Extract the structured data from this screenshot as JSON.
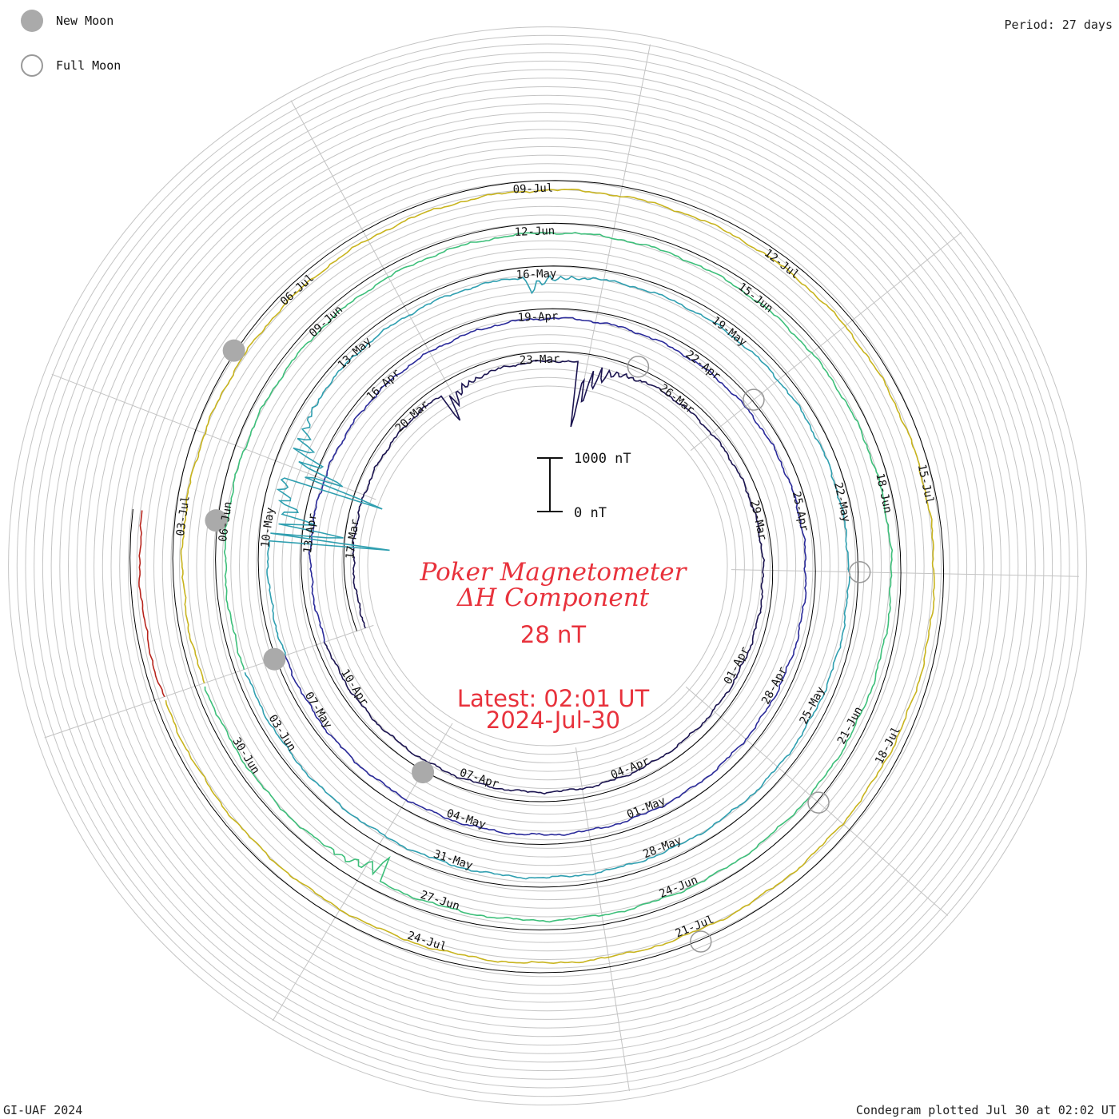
{
  "legend": {
    "new_moon_label": "New Moon",
    "full_moon_label": "Full Moon"
  },
  "period_label": "Period: 27 days",
  "footer": {
    "left": "GI-UAF 2024",
    "right": "Condegram plotted Jul 30 at 02:02 UT"
  },
  "center": {
    "title_line1": "Poker Magnetometer",
    "title_line2": "ΔH Component",
    "value": "28 nT",
    "latest_line1": "Latest: 02:01 UT",
    "latest_line2": "2024-Jul-30",
    "scale_top": "1000 nT",
    "scale_bottom": "0 nT"
  },
  "colors": {
    "accent": "#e8323c",
    "moon_fill": "#aaaaaa",
    "grid": "#bbbbbb",
    "reference_ring": "#000000"
  },
  "chart_data": {
    "type": "line",
    "layout": "spiral condegram",
    "title": "Poker Magnetometer ΔH Component",
    "period_days": 27,
    "current_value_nT": 28,
    "scale_nT": [
      0,
      1000
    ],
    "grid": true,
    "date_range": [
      "2024-03-15",
      "2024-07-30"
    ],
    "date_ticks": [
      "17-Mar",
      "20-Mar",
      "23-Mar",
      "26-Mar",
      "29-Mar",
      "01-Apr",
      "04-Apr",
      "07-Apr",
      "10-Apr",
      "13-Apr",
      "16-Apr",
      "19-Apr",
      "22-Apr",
      "25-Apr",
      "28-Apr",
      "01-May",
      "04-May",
      "07-May",
      "10-May",
      "13-May",
      "16-May",
      "19-May",
      "22-May",
      "25-May",
      "28-May",
      "31-May",
      "03-Jun",
      "06-Jun",
      "09-Jun",
      "12-Jun",
      "15-Jun",
      "18-Jun",
      "21-Jun",
      "24-Jun",
      "27-Jun",
      "30-Jun",
      "03-Jul",
      "06-Jul",
      "09-Jul",
      "12-Jul",
      "15-Jul",
      "18-Jul",
      "21-Jul",
      "24-Jul"
    ],
    "series": [
      {
        "start": "2024-03-15",
        "color": "#1b1450"
      },
      {
        "start": "2024-04-11",
        "color": "#2a2a9a"
      },
      {
        "start": "2024-05-08",
        "color": "#2f9fb0"
      },
      {
        "start": "2024-06-04",
        "color": "#3dbf7a"
      },
      {
        "start": "2024-07-01",
        "color": "#c8b41e"
      },
      {
        "start": "2024-07-28",
        "color": "#b8241c"
      }
    ],
    "disturbances": [
      {
        "date": "2024-03-21",
        "peak_nT": 350
      },
      {
        "date": "2024-03-24",
        "peak_nT": 900
      },
      {
        "date": "2024-05-10",
        "peak_nT": 1400
      },
      {
        "date": "2024-05-11",
        "peak_nT": 1200
      },
      {
        "date": "2024-05-16",
        "peak_nT": 250
      },
      {
        "date": "2024-06-28",
        "peak_nT": 250
      }
    ],
    "new_moons": [
      "2024-04-08",
      "2024-05-08",
      "2024-06-06",
      "2024-07-05"
    ],
    "full_moons": [
      "2024-03-25",
      "2024-04-23",
      "2024-05-23",
      "2024-06-22",
      "2024-07-21"
    ]
  }
}
